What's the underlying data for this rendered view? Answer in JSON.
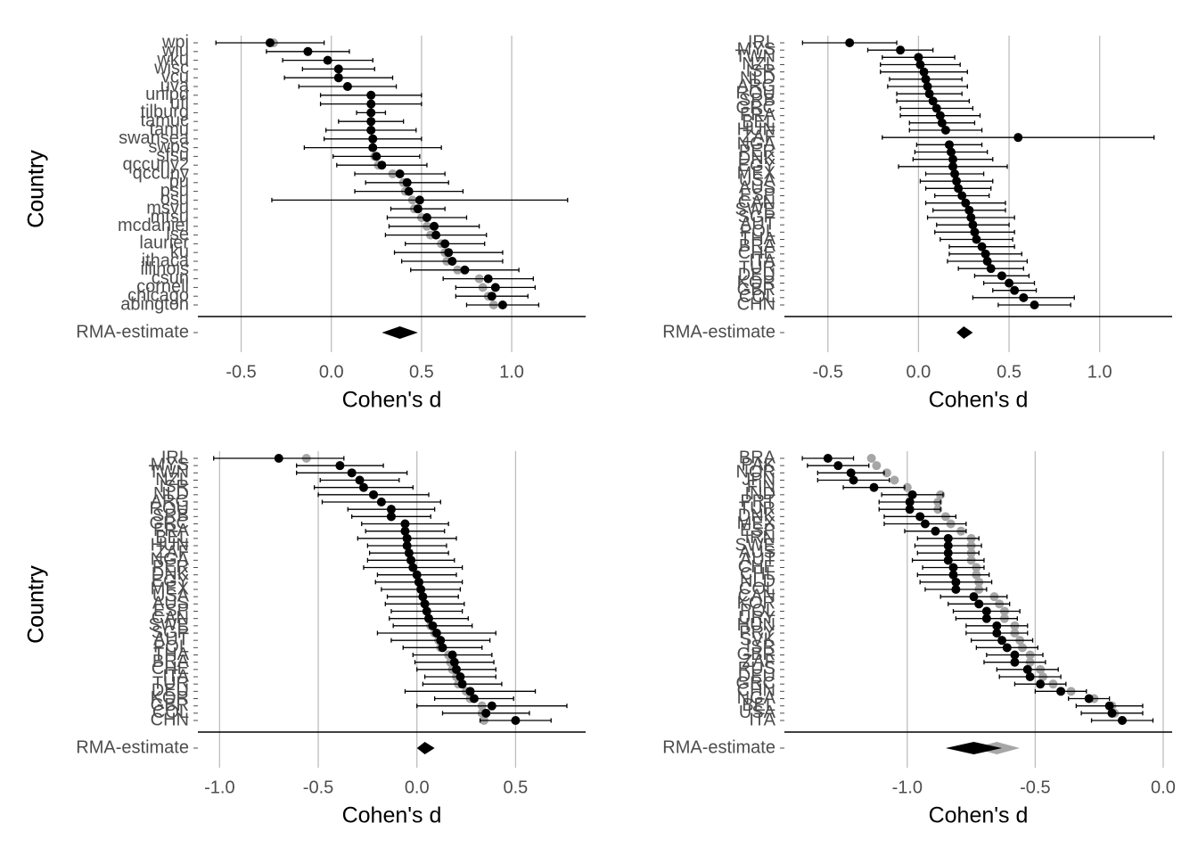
{
  "chart_data": [
    {
      "type": "forest",
      "ylabel": "Country",
      "xlabel": "Cohen's d",
      "estimate_label": "RMA-estimate",
      "color": "#000000",
      "comparison_color": "#a6a6a6",
      "grid": true,
      "xlim": [
        -0.74,
        1.41
      ],
      "xticks": [
        -0.5,
        {
          "value": 0,
          "label": "0.0"
        },
        0.5,
        {
          "value": 1,
          "label": "1.0"
        }
      ],
      "categories": [
        "wpi",
        "wlu",
        "wku",
        "wisc",
        "vcu",
        "uva",
        "unipd",
        "ufl",
        "tilburg",
        "tamuc",
        "tamu",
        "swansea",
        "swps",
        "sfsu",
        "qccuny2",
        "qccuny",
        "pu",
        "psu",
        "osu",
        "msvu",
        "mtsu",
        "mcdaniel",
        "lse",
        "laurier",
        "ku",
        "ithaca",
        "illinois",
        "csun",
        "cornell",
        "chicago",
        "abington"
      ],
      "values": [
        -0.34,
        -0.13,
        -0.02,
        0.04,
        0.04,
        0.09,
        0.22,
        0.22,
        0.22,
        0.22,
        0.22,
        0.23,
        0.23,
        0.25,
        0.28,
        0.38,
        0.42,
        0.43,
        0.49,
        0.48,
        0.53,
        0.57,
        0.58,
        0.63,
        0.65,
        0.67,
        0.74,
        0.87,
        0.91,
        0.89,
        0.95
      ],
      "errors": [
        0.3,
        0.23,
        0.25,
        0.2,
        0.3,
        0.27,
        0.28,
        0.28,
        0.08,
        0.18,
        0.25,
        0.27,
        0.38,
        0.24,
        0.25,
        0.25,
        0.23,
        0.3,
        0.82,
        0.15,
        0.22,
        0.25,
        0.28,
        0.22,
        0.3,
        0.28,
        0.3,
        0.25,
        0.22,
        0.2,
        0.2
      ],
      "comparison_values": [
        -0.32,
        -0.13,
        -0.02,
        0.04,
        0.04,
        0.09,
        0.22,
        0.22,
        0.22,
        0.22,
        0.22,
        0.23,
        0.23,
        0.24,
        0.26,
        0.34,
        0.4,
        0.41,
        0.45,
        0.46,
        0.5,
        0.53,
        0.55,
        0.61,
        0.63,
        0.64,
        0.7,
        0.82,
        0.84,
        0.87,
        0.9
      ],
      "estimate": {
        "value": 0.38,
        "lower": 0.28,
        "upper": 0.48
      }
    },
    {
      "type": "forest",
      "ylabel": "Country",
      "xlabel": "Cohen's d",
      "estimate_label": "RMA-estimate",
      "color": "#000000",
      "comparison_color": "#a6a6a6",
      "grid": true,
      "xlim": [
        -0.74,
        1.4
      ],
      "xticks": [
        -0.5,
        {
          "value": 0,
          "label": "0.0"
        },
        0.5,
        {
          "value": 1,
          "label": "1.0"
        }
      ],
      "categories": [
        "IRL",
        "MYS",
        "TWN",
        "NZL",
        "ISR",
        "NLD",
        "ARG",
        "ROU",
        "SRB",
        "GRC",
        "FRA",
        "BEL",
        "HUN",
        "ZAF",
        "NGA",
        "PER",
        "DNK",
        "EGY",
        "MEX",
        "USA",
        "AUS",
        "ESP",
        "CAN",
        "SWE",
        "SGP",
        "AUT",
        "POL",
        "THA",
        "BRA",
        "CHE",
        "ITA",
        "TUR",
        "DEU",
        "KOR",
        "GBR",
        "COL",
        "CHN"
      ],
      "values": [
        -0.38,
        -0.1,
        0.0,
        0.01,
        0.03,
        0.04,
        0.05,
        0.06,
        0.08,
        0.1,
        0.12,
        0.13,
        0.15,
        0.55,
        0.17,
        0.18,
        0.19,
        0.19,
        0.2,
        0.21,
        0.22,
        0.24,
        0.26,
        0.28,
        0.29,
        0.3,
        0.31,
        0.32,
        0.35,
        0.37,
        0.38,
        0.4,
        0.46,
        0.5,
        0.53,
        0.58,
        0.64
      ],
      "errors": [
        0.26,
        0.18,
        0.2,
        0.22,
        0.24,
        0.2,
        0.22,
        0.18,
        0.2,
        0.2,
        0.22,
        0.18,
        0.2,
        0.75,
        0.18,
        0.2,
        0.22,
        0.3,
        0.16,
        0.2,
        0.18,
        0.15,
        0.22,
        0.2,
        0.24,
        0.2,
        0.22,
        0.2,
        0.18,
        0.2,
        0.22,
        0.18,
        0.15,
        0.14,
        0.12,
        0.28,
        0.2
      ],
      "estimate": {
        "value": 0.25,
        "lower": 0.21,
        "upper": 0.3
      }
    },
    {
      "type": "forest",
      "ylabel": "Country",
      "xlabel": "Cohen's d",
      "estimate_label": "RMA-estimate",
      "color": "#000000",
      "comparison_color": "#a6a6a6",
      "grid": true,
      "xlim": [
        -1.11,
        0.855
      ],
      "xticks": [
        {
          "value": -1,
          "label": "-1.0"
        },
        -0.5,
        {
          "value": 0,
          "label": "0.0"
        },
        0.5
      ],
      "categories": [
        "IRL",
        "MYS",
        "TWN",
        "NZL",
        "ISR",
        "NLD",
        "ARG",
        "ROU",
        "SRB",
        "GRC",
        "FRA",
        "BEL",
        "HUN",
        "ZAF",
        "NGA",
        "PER",
        "DNK",
        "EGY",
        "MEX",
        "USA",
        "AUS",
        "ESP",
        "CAN",
        "SWE",
        "SGP",
        "AUT",
        "POL",
        "THA",
        "BRA",
        "CHE",
        "ITA",
        "TUR",
        "DEU",
        "KOR",
        "GBR",
        "COL",
        "CHN"
      ],
      "values": [
        -0.7,
        -0.39,
        -0.33,
        -0.29,
        -0.27,
        -0.22,
        -0.18,
        -0.13,
        -0.13,
        -0.06,
        -0.06,
        -0.05,
        -0.05,
        -0.04,
        -0.03,
        -0.02,
        0.0,
        0.01,
        0.02,
        0.03,
        0.04,
        0.05,
        0.06,
        0.08,
        0.1,
        0.12,
        0.13,
        0.18,
        0.19,
        0.2,
        0.22,
        0.23,
        0.27,
        0.29,
        0.38,
        0.35,
        0.5
      ],
      "errors": [
        0.33,
        0.22,
        0.28,
        0.2,
        0.25,
        0.28,
        0.3,
        0.22,
        0.2,
        0.22,
        0.2,
        0.25,
        0.2,
        0.2,
        0.22,
        0.25,
        0.2,
        0.22,
        0.2,
        0.18,
        0.2,
        0.18,
        0.2,
        0.2,
        0.3,
        0.25,
        0.2,
        0.2,
        0.2,
        0.2,
        0.18,
        0.2,
        0.33,
        0.2,
        0.38,
        0.22,
        0.18
      ],
      "comparison_values": [
        -0.56,
        -0.39,
        -0.33,
        -0.29,
        -0.27,
        -0.22,
        -0.18,
        -0.13,
        -0.13,
        -0.06,
        -0.06,
        -0.05,
        -0.05,
        -0.04,
        -0.03,
        -0.02,
        0.0,
        0.01,
        0.02,
        0.03,
        0.04,
        0.05,
        0.06,
        0.07,
        0.09,
        0.11,
        0.12,
        0.16,
        0.17,
        0.18,
        0.2,
        0.21,
        0.25,
        0.27,
        0.33,
        0.33,
        0.34
      ],
      "estimate": {
        "value": 0.04,
        "lower": 0.0,
        "upper": 0.09
      }
    },
    {
      "type": "forest",
      "ylabel": "Country",
      "xlabel": "Cohen's d",
      "estimate_label": "RMA-estimate",
      "color": "#000000",
      "comparison_color": "#a6a6a6",
      "grid": true,
      "xlim": [
        -1.48,
        0.035
      ],
      "xticks": [
        {
          "value": -1,
          "label": "-1.0"
        },
        -0.5,
        {
          "value": 0,
          "label": "0.0"
        }
      ],
      "categories": [
        "BRA",
        "PAK",
        "NOR",
        "JPN",
        "FIN",
        "IND",
        "PRT",
        "TUR",
        "DNK",
        "MEX",
        "ESP",
        "IRN",
        "SWE",
        "AUS",
        "AUT",
        "CHE",
        "CHL",
        "NLD",
        "COL",
        "CAN",
        "KOR",
        "POL",
        "URY",
        "HUN",
        "PRY",
        "SVK",
        "ISR",
        "GBR",
        "ZAF",
        "RUS",
        "DEU",
        "GRC",
        "CHN",
        "NGA",
        "BEL",
        "USA",
        "ITA"
      ],
      "values": [
        -1.31,
        -1.27,
        -1.22,
        -1.21,
        -1.13,
        -0.98,
        -0.99,
        -0.99,
        -0.95,
        -0.93,
        -0.89,
        -0.84,
        -0.84,
        -0.84,
        -0.84,
        -0.82,
        -0.82,
        -0.81,
        -0.81,
        -0.74,
        -0.72,
        -0.69,
        -0.69,
        -0.65,
        -0.65,
        -0.63,
        -0.61,
        -0.58,
        -0.58,
        -0.53,
        -0.52,
        -0.48,
        -0.4,
        -0.29,
        -0.21,
        -0.2,
        -0.16
      ],
      "errors": [
        0.1,
        0.12,
        0.13,
        0.14,
        0.12,
        0.12,
        0.12,
        0.12,
        0.14,
        0.16,
        0.12,
        0.12,
        0.13,
        0.12,
        0.14,
        0.12,
        0.14,
        0.14,
        0.12,
        0.13,
        0.12,
        0.13,
        0.12,
        0.12,
        0.12,
        0.12,
        0.12,
        0.11,
        0.12,
        0.12,
        0.12,
        0.1,
        0.1,
        0.08,
        0.13,
        0.12,
        0.12
      ],
      "comparison_values": [
        -1.14,
        -1.12,
        -1.08,
        -1.05,
        -1.0,
        -0.87,
        -0.88,
        -0.88,
        -0.85,
        -0.83,
        -0.79,
        -0.75,
        -0.75,
        -0.75,
        -0.75,
        -0.73,
        -0.73,
        -0.72,
        -0.72,
        -0.66,
        -0.64,
        -0.62,
        -0.62,
        -0.58,
        -0.58,
        -0.56,
        -0.55,
        -0.52,
        -0.52,
        -0.48,
        -0.47,
        -0.43,
        -0.36,
        -0.27,
        -0.2,
        -0.19,
        -0.16
      ],
      "estimate": {
        "value": -0.74,
        "lower": -0.85,
        "upper": -0.63
      },
      "comparison_estimate": {
        "value": -0.65,
        "lower": -0.74,
        "upper": -0.56
      }
    }
  ]
}
